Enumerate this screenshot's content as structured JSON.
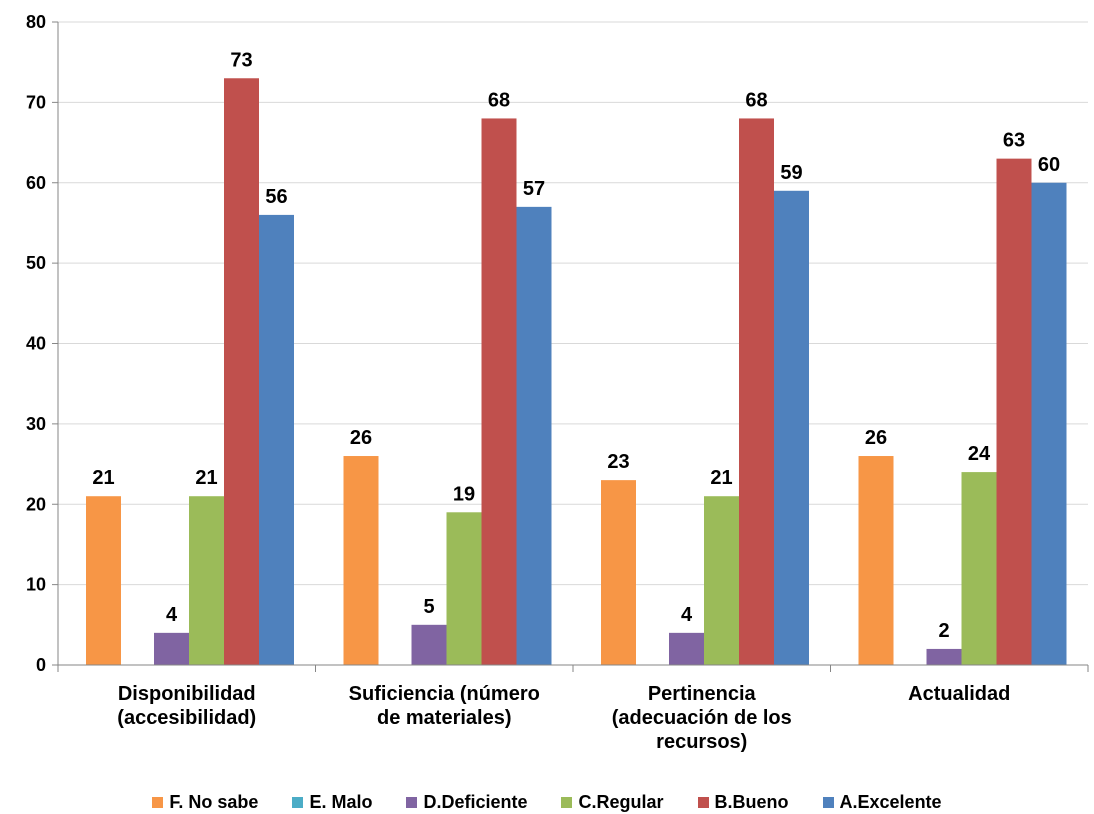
{
  "chart_data": {
    "type": "bar",
    "categories": [
      [
        "Disponibilidad",
        "(accesibilidad)"
      ],
      [
        "Suficiencia (número",
        "de materiales)"
      ],
      [
        "Pertinencia",
        "(adecuación de los",
        "recursos)"
      ],
      [
        "Actualidad"
      ]
    ],
    "series": [
      {
        "name": "F. No sabe",
        "color": "#F79646",
        "values": [
          21,
          26,
          23,
          26
        ]
      },
      {
        "name": "E. Malo",
        "color": "#4BACC6",
        "values": [
          0,
          0,
          0,
          0
        ]
      },
      {
        "name": "D.Deficiente",
        "color": "#8064A2",
        "values": [
          4,
          5,
          4,
          2
        ]
      },
      {
        "name": "C.Regular",
        "color": "#9BBB59",
        "values": [
          21,
          19,
          21,
          24
        ]
      },
      {
        "name": "B.Bueno",
        "color": "#C0504D",
        "values": [
          73,
          68,
          68,
          63
        ]
      },
      {
        "name": "A.Excelente",
        "color": "#4F81BD",
        "values": [
          56,
          57,
          59,
          60
        ]
      }
    ],
    "ylim": [
      0,
      80
    ],
    "yticks": [
      0,
      10,
      20,
      30,
      40,
      50,
      60,
      70,
      80
    ],
    "grid": true,
    "legend": "bottom"
  }
}
